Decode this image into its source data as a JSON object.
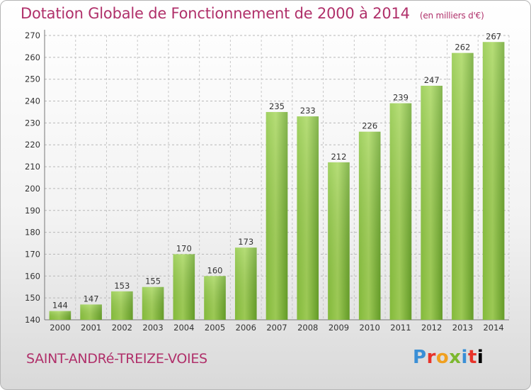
{
  "header": {
    "title": "Dotation Globale de Fonctionnement de 2000 à 2014",
    "unit": "(en milliers d'€)"
  },
  "footer": {
    "commune": "SAINT-ANDRé-TREIZE-VOIES",
    "logo_letters": [
      "P",
      "r",
      "o",
      "x",
      "i",
      "t",
      "i"
    ]
  },
  "chart_data": {
    "type": "bar",
    "title": "Dotation Globale de Fonctionnement de 2000 à 2014",
    "xlabel": "",
    "ylabel": "",
    "categories": [
      "2000",
      "2001",
      "2002",
      "2003",
      "2004",
      "2005",
      "2006",
      "2007",
      "2008",
      "2009",
      "2010",
      "2011",
      "2012",
      "2013",
      "2014"
    ],
    "values": [
      144,
      147,
      153,
      155,
      170,
      160,
      173,
      235,
      233,
      212,
      226,
      239,
      247,
      262,
      267
    ],
    "ylim": [
      140,
      270
    ],
    "yticks": [
      140,
      150,
      160,
      170,
      180,
      190,
      200,
      210,
      220,
      230,
      240,
      250,
      260,
      270
    ],
    "grid": true,
    "bar_color": "#7ab62f",
    "bar_color_light": "#a6d65a"
  }
}
